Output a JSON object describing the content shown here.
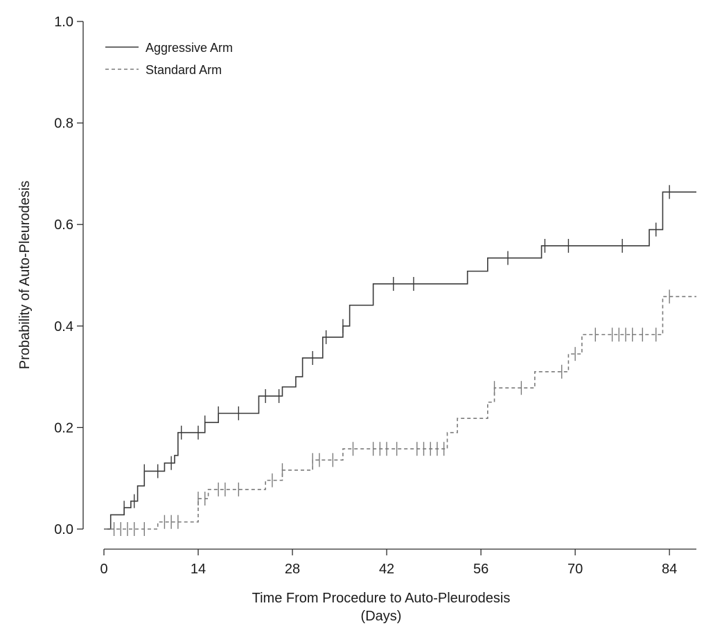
{
  "chart_data": {
    "type": "line",
    "subtype": "kaplan-meier-step",
    "xlabel": "Time From Procedure to Auto-Pleurodesis",
    "xlabel_unit": "(Days)",
    "ylabel": "Probability of Auto-Pleurodesis",
    "xlim": [
      0,
      88
    ],
    "ylim": [
      0,
      1
    ],
    "xticks": [
      0,
      14,
      28,
      42,
      56,
      70,
      84
    ],
    "xtick_labels": [
      "0",
      "14",
      "28",
      "42",
      "56",
      "70",
      "84"
    ],
    "yticks": [
      0,
      0.2,
      0.4,
      0.6,
      0.8,
      1
    ],
    "ytick_labels": [
      "0.0",
      "0.2",
      "0.4",
      "0.6",
      "0.8",
      "1.0"
    ],
    "grid": false,
    "legend_position": "top-left",
    "series": [
      {
        "name": "Aggressive Arm",
        "line_style": "solid",
        "color": "#3a3a3a",
        "steps": [
          [
            0,
            0
          ],
          [
            1,
            0.028
          ],
          [
            3,
            0.042
          ],
          [
            4,
            0.055
          ],
          [
            5,
            0.085
          ],
          [
            6,
            0.114
          ],
          [
            9,
            0.13
          ],
          [
            10.5,
            0.145
          ],
          [
            11,
            0.19
          ],
          [
            15,
            0.21
          ],
          [
            17,
            0.228
          ],
          [
            23,
            0.262
          ],
          [
            26.5,
            0.28
          ],
          [
            28.5,
            0.3
          ],
          [
            29.5,
            0.337
          ],
          [
            32.5,
            0.378
          ],
          [
            35.5,
            0.4
          ],
          [
            36.5,
            0.441
          ],
          [
            40,
            0.483
          ],
          [
            54,
            0.508
          ],
          [
            57,
            0.534
          ],
          [
            65,
            0.558
          ],
          [
            81,
            0.59
          ],
          [
            83,
            0.664
          ]
        ],
        "censor_x": [
          3,
          4.5,
          6,
          8,
          10,
          11.5,
          14,
          15,
          17,
          20,
          24,
          26,
          31,
          33,
          35.5,
          43,
          46,
          60,
          65.5,
          69,
          77,
          82,
          84
        ]
      },
      {
        "name": "Standard Arm",
        "line_style": "dashed",
        "color": "#7a7a7a",
        "steps": [
          [
            0,
            0
          ],
          [
            8,
            0.014
          ],
          [
            14,
            0.06
          ],
          [
            15.5,
            0.078
          ],
          [
            24,
            0.096
          ],
          [
            26.5,
            0.116
          ],
          [
            31,
            0.136
          ],
          [
            35.5,
            0.158
          ],
          [
            51,
            0.19
          ],
          [
            52.5,
            0.218
          ],
          [
            57,
            0.25
          ],
          [
            58,
            0.278
          ],
          [
            64,
            0.31
          ],
          [
            69,
            0.345
          ],
          [
            71,
            0.383
          ],
          [
            83,
            0.458
          ]
        ],
        "censor_x": [
          1.5,
          2.5,
          3.5,
          4.5,
          6,
          9,
          10,
          11,
          14,
          15,
          17,
          18,
          20,
          25,
          26.5,
          31,
          32,
          34,
          37,
          40,
          41,
          42,
          43.5,
          46.5,
          47.5,
          48.5,
          49.5,
          50.5,
          58,
          62,
          68,
          70,
          73,
          75.5,
          76.5,
          77.5,
          78.5,
          80,
          82,
          84
        ]
      }
    ]
  }
}
